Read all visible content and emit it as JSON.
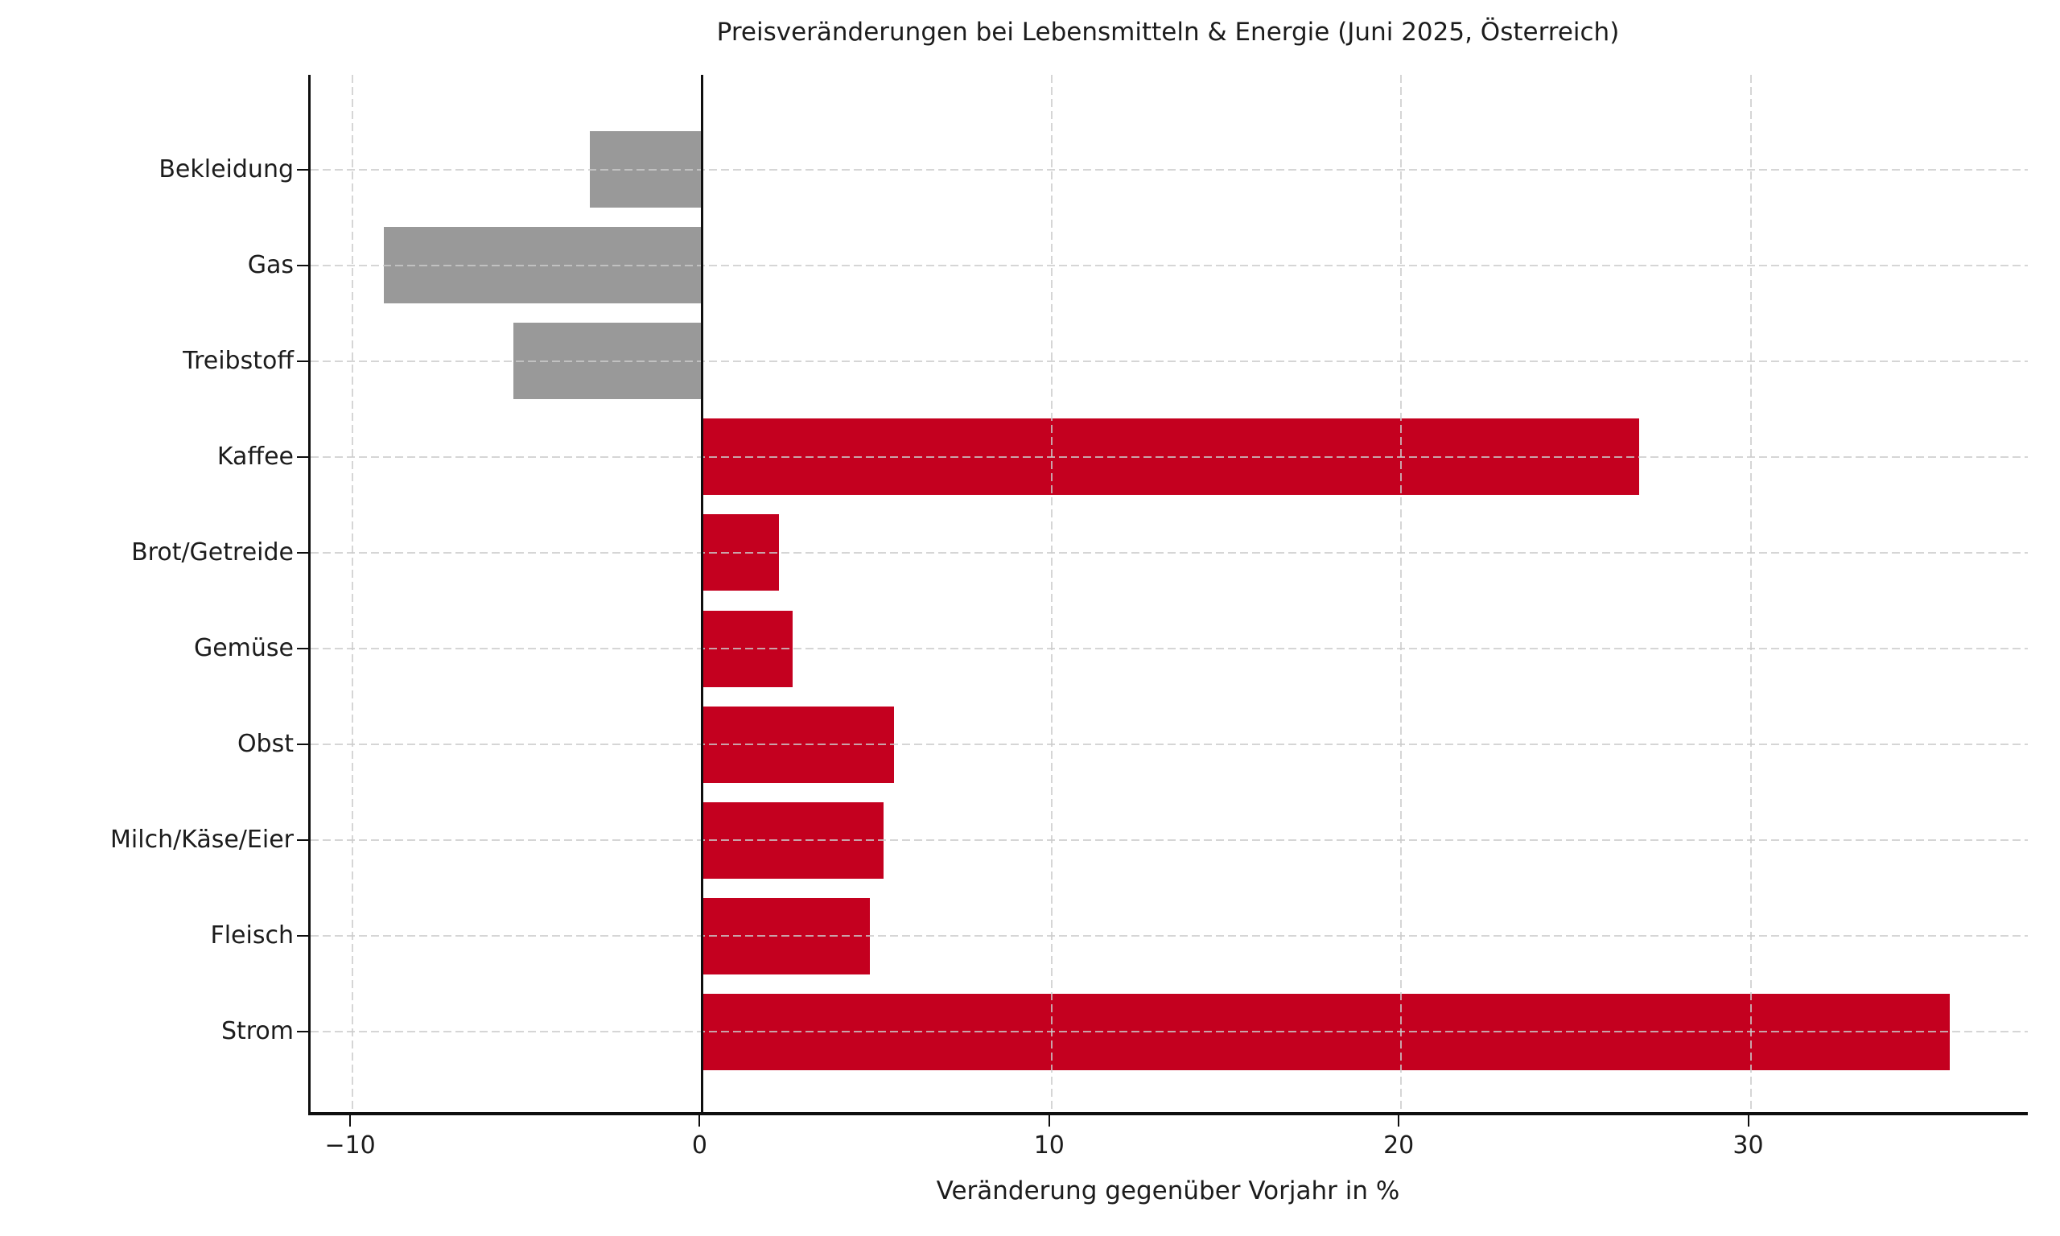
{
  "chart_data": {
    "type": "bar",
    "orientation": "horizontal",
    "title": "Preisveränderungen bei Lebensmitteln & Energie (Juni 2025, Österreich)",
    "xlabel": "Veränderung gegenüber Vorjahr in %",
    "ylabel": "",
    "categories": [
      "Bekleidung",
      "Gas",
      "Treibstoff",
      "Kaffee",
      "Brot/Getreide",
      "Gemüse",
      "Obst",
      "Milch/Käse/Eier",
      "Fleisch",
      "Strom"
    ],
    "values": [
      -3.2,
      -9.1,
      -5.4,
      26.8,
      2.2,
      2.6,
      5.5,
      5.2,
      4.8,
      35.7
    ],
    "xlim": [
      -11.2,
      38.0
    ],
    "xticks": [
      -10,
      0,
      10,
      20,
      30
    ],
    "xtick_labels": [
      "−10",
      "0",
      "10",
      "20",
      "30"
    ],
    "grid": true,
    "grid_style": "dashed",
    "legend": "none",
    "colors": {
      "positive_bar": "#c4001f",
      "negative_bar": "#999999",
      "gridline": "#cccccc",
      "zero_line": "#0f0f0f",
      "spine": "#0f0f0f",
      "text": "#1c1c1c",
      "background": "#ffffff"
    }
  }
}
